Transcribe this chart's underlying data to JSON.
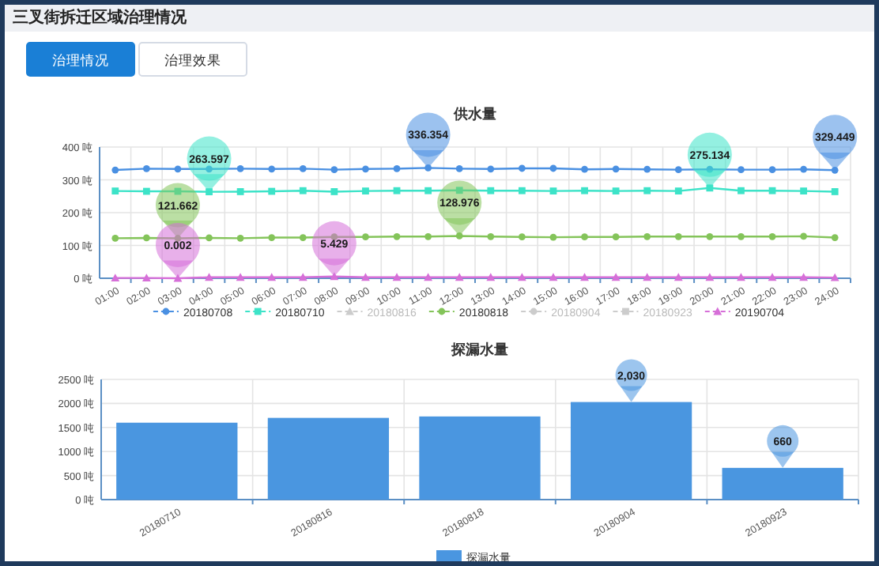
{
  "chart_data": [
    {
      "type": "other",
      "title": "三叉街拆迁区域治理情况",
      "annotations": [
        "治理情况",
        "治理效果"
      ]
    },
    {
      "type": "line",
      "title": "供水量",
      "categories": [
        "01:00",
        "02:00",
        "03:00",
        "04:00",
        "05:00",
        "06:00",
        "07:00",
        "08:00",
        "09:00",
        "10:00",
        "11:00",
        "12:00",
        "13:00",
        "14:00",
        "15:00",
        "16:00",
        "17:00",
        "18:00",
        "19:00",
        "20:00",
        "21:00",
        "22:00",
        "23:00",
        "24:00"
      ],
      "ylim": [
        0,
        400
      ],
      "yticks": [
        {
          "value": 0,
          "label": "0 吨"
        },
        {
          "value": 100,
          "label": "100 吨"
        },
        {
          "value": 200,
          "label": "200 吨"
        },
        {
          "value": 300,
          "label": "300 吨"
        },
        {
          "value": 400,
          "label": "400 吨"
        }
      ],
      "grid": true,
      "legend": "bottom",
      "series": [
        {
          "name": "20180708",
          "color": "#4a90e2",
          "marker": "circle",
          "values": [
            330,
            334,
            333,
            333,
            334,
            333,
            334,
            331,
            333,
            334,
            336.354,
            334,
            333,
            335,
            335,
            332,
            333,
            332,
            331,
            332,
            331,
            331,
            332,
            329.449
          ]
        },
        {
          "name": "20180710",
          "color": "#3de3c8",
          "marker": "square",
          "values": [
            266,
            265,
            265,
            263.597,
            264,
            265,
            267,
            264,
            266,
            267,
            267,
            268,
            267,
            267,
            266,
            267,
            266,
            267,
            266,
            275.134,
            267,
            267,
            266,
            264
          ]
        },
        {
          "name": "20180816",
          "color": "#cccccc",
          "marker": "triangle",
          "values": [
            null,
            null,
            null,
            null,
            null,
            null,
            null,
            null,
            null,
            null,
            null,
            null,
            null,
            null,
            null,
            null,
            null,
            null,
            null,
            null,
            null,
            null,
            null,
            null
          ]
        },
        {
          "name": "20180818",
          "color": "#84c45a",
          "marker": "circle",
          "values": [
            122,
            123,
            121.662,
            123,
            122,
            124,
            124,
            126,
            126,
            127,
            127,
            128.976,
            127,
            126,
            125,
            126,
            126,
            127,
            127,
            127,
            127,
            127,
            128,
            124
          ]
        },
        {
          "name": "20180904",
          "color": "#cccccc",
          "marker": "circle",
          "values": [
            null,
            null,
            null,
            null,
            null,
            null,
            null,
            null,
            null,
            null,
            null,
            null,
            null,
            null,
            null,
            null,
            null,
            null,
            null,
            null,
            null,
            null,
            null,
            null
          ]
        },
        {
          "name": "20180923",
          "color": "#cccccc",
          "marker": "square",
          "values": [
            null,
            null,
            null,
            null,
            null,
            null,
            null,
            null,
            null,
            null,
            null,
            null,
            null,
            null,
            null,
            null,
            null,
            null,
            null,
            null,
            null,
            null,
            null,
            null
          ]
        },
        {
          "name": "20190704",
          "color": "#d66fd8",
          "marker": "triangle",
          "values": [
            1,
            1,
            0.002,
            3,
            3,
            3,
            3,
            5.429,
            3,
            3,
            3,
            3,
            3,
            3,
            3,
            3,
            3,
            3,
            3,
            3,
            3,
            3,
            3,
            2
          ]
        }
      ],
      "annotations": [
        {
          "text": "336.354",
          "x": "11:00",
          "y": 336.354
        },
        {
          "text": "329.449",
          "x": "24:00",
          "y": 329.449
        },
        {
          "text": "263.597",
          "x": "04:00",
          "y": 263.597
        },
        {
          "text": "275.134",
          "x": "20:00",
          "y": 275.134
        },
        {
          "text": "121.662",
          "x": "03:00",
          "y": 121.662
        },
        {
          "text": "128.976",
          "x": "12:00",
          "y": 128.976
        },
        {
          "text": "0.002",
          "x": "03:00",
          "y": 0.002
        },
        {
          "text": "5.429",
          "x": "08:00",
          "y": 5.429
        }
      ]
    },
    {
      "type": "bar",
      "title": "探漏水量",
      "categories": [
        "20180710",
        "20180816",
        "20180818",
        "20180904",
        "20180923"
      ],
      "ylim": [
        0,
        2500
      ],
      "yticks": [
        {
          "value": 0,
          "label": "0 吨"
        },
        {
          "value": 500,
          "label": "500 吨"
        },
        {
          "value": 1000,
          "label": "1000 吨"
        },
        {
          "value": 1500,
          "label": "1500 吨"
        },
        {
          "value": 2000,
          "label": "2000 吨"
        },
        {
          "value": 2500,
          "label": "2500 吨"
        }
      ],
      "grid": true,
      "legend": "bottom",
      "series": [
        {
          "name": "探漏水量",
          "color": "#4a96e0",
          "values": [
            1600,
            1700,
            1730,
            2030,
            660
          ],
          "value_labels": [
            null,
            null,
            null,
            "2,030",
            "660"
          ]
        }
      ]
    }
  ]
}
